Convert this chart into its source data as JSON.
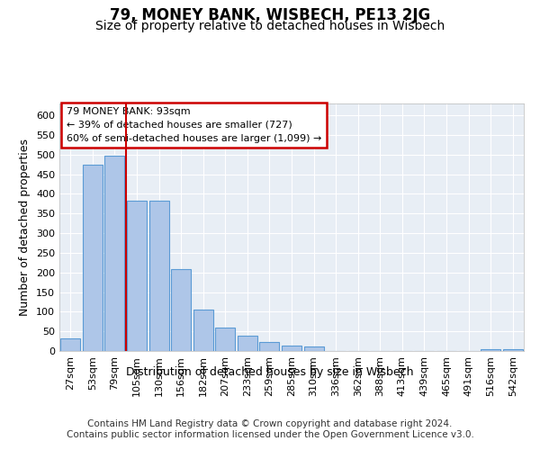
{
  "title": "79, MONEY BANK, WISBECH, PE13 2JG",
  "subtitle": "Size of property relative to detached houses in Wisbech",
  "xlabel": "Distribution of detached houses by size in Wisbech",
  "ylabel": "Number of detached properties",
  "bar_labels": [
    "27sqm",
    "53sqm",
    "79sqm",
    "105sqm",
    "130sqm",
    "156sqm",
    "182sqm",
    "207sqm",
    "233sqm",
    "259sqm",
    "285sqm",
    "310sqm",
    "336sqm",
    "362sqm",
    "388sqm",
    "413sqm",
    "439sqm",
    "465sqm",
    "491sqm",
    "516sqm",
    "542sqm"
  ],
  "bar_values": [
    32,
    475,
    497,
    383,
    383,
    209,
    106,
    60,
    38,
    22,
    13,
    12,
    0,
    0,
    0,
    0,
    0,
    0,
    0,
    5,
    5
  ],
  "bar_color": "#aec6e8",
  "bar_edgecolor": "#5b9bd5",
  "vline_x": 2.5,
  "vline_color": "#cc0000",
  "annotation_text": "79 MONEY BANK: 93sqm\n← 39% of detached houses are smaller (727)\n60% of semi-detached houses are larger (1,099) →",
  "annotation_box_color": "#cc0000",
  "ylim": [
    0,
    630
  ],
  "yticks": [
    0,
    50,
    100,
    150,
    200,
    250,
    300,
    350,
    400,
    450,
    500,
    550,
    600
  ],
  "bg_color": "#e8eef5",
  "grid_color": "#ffffff",
  "footer": "Contains HM Land Registry data © Crown copyright and database right 2024.\nContains public sector information licensed under the Open Government Licence v3.0.",
  "title_fontsize": 12,
  "subtitle_fontsize": 10,
  "axis_label_fontsize": 9,
  "tick_fontsize": 8,
  "footer_fontsize": 7.5
}
